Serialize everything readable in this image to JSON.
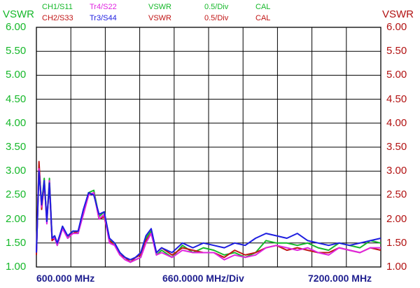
{
  "header": {
    "rows": [
      [
        {
          "text": "CH1/S11",
          "color": "#16b82a"
        },
        {
          "text": "Tr4/S22",
          "color": "#e025e0"
        },
        {
          "text": "VSWR",
          "color": "#16b82a"
        },
        {
          "text": "0.5/Div",
          "color": "#16b82a"
        },
        {
          "text": "CAL",
          "color": "#16b82a"
        }
      ],
      [
        {
          "text": "CH2/S33",
          "color": "#c01515"
        },
        {
          "text": "Tr3/S44",
          "color": "#1e1ee0"
        },
        {
          "text": "VSWR",
          "color": "#c01515"
        },
        {
          "text": "0.5/Div",
          "color": "#c01515"
        },
        {
          "text": "CAL",
          "color": "#c01515"
        }
      ]
    ]
  },
  "colors": {
    "grid": "#000000",
    "left_axis": "#16b82a",
    "right_axis": "#b21212",
    "x_footer": "#1f1f8f"
  },
  "chart_data": {
    "type": "line",
    "ylabel_left": "VSWR",
    "ylabel_right": "VSWR",
    "yticks_left": [
      "6.00",
      "5.50",
      "5.00",
      "4.50",
      "4.00",
      "3.50",
      "3.00",
      "2.50",
      "2.00",
      "1.50",
      "1.00"
    ],
    "yticks_right": [
      "6.00",
      "5.50",
      "5.00",
      "4.50",
      "4.00",
      "3.50",
      "3.00",
      "2.50",
      "2.00",
      "1.50",
      "1.00"
    ],
    "ylim": [
      1.0,
      6.0
    ],
    "xlim": [
      600,
      7200
    ],
    "x_start_label": "600.000 MHz",
    "x_div_label": "660.0000 MHz/Div",
    "x_stop_label": "7200.000 MHz",
    "grid": true,
    "series": [
      {
        "name": "CH1/S11",
        "color": "#16b82a",
        "x": [
          600,
          650,
          700,
          750,
          800,
          850,
          900,
          950,
          1000,
          1100,
          1200,
          1300,
          1400,
          1500,
          1600,
          1700,
          1800,
          1900,
          2000,
          2100,
          2200,
          2300,
          2400,
          2500,
          2600,
          2700,
          2800,
          2900,
          3000,
          3200,
          3400,
          3600,
          3800,
          4000,
          4200,
          4400,
          4600,
          4800,
          5000,
          5200,
          5400,
          5600,
          5800,
          6000,
          6200,
          6400,
          6600,
          6800,
          7000,
          7200
        ],
        "y": [
          1.3,
          3.1,
          2.3,
          2.85,
          1.95,
          2.85,
          1.6,
          1.65,
          1.45,
          1.85,
          1.6,
          1.75,
          1.7,
          2.15,
          2.55,
          2.6,
          2.05,
          2.15,
          1.55,
          1.5,
          1.3,
          1.2,
          1.1,
          1.15,
          1.2,
          1.6,
          1.75,
          1.25,
          1.35,
          1.2,
          1.45,
          1.3,
          1.4,
          1.35,
          1.25,
          1.3,
          1.2,
          1.3,
          1.55,
          1.5,
          1.5,
          1.45,
          1.5,
          1.4,
          1.35,
          1.5,
          1.45,
          1.4,
          1.55,
          1.5
        ]
      },
      {
        "name": "CH2/S33",
        "color": "#c01515",
        "x": [
          600,
          650,
          700,
          750,
          800,
          850,
          900,
          950,
          1000,
          1100,
          1200,
          1300,
          1400,
          1500,
          1600,
          1700,
          1800,
          1900,
          2000,
          2100,
          2200,
          2300,
          2400,
          2500,
          2600,
          2700,
          2800,
          2900,
          3000,
          3200,
          3400,
          3600,
          3800,
          4000,
          4200,
          4400,
          4600,
          4800,
          5000,
          5200,
          5400,
          5600,
          5800,
          6000,
          6200,
          6400,
          6600,
          6800,
          7000,
          7200
        ],
        "y": [
          1.25,
          3.2,
          2.2,
          2.75,
          2.0,
          2.7,
          1.55,
          1.6,
          1.5,
          1.8,
          1.65,
          1.7,
          1.75,
          2.1,
          2.5,
          2.55,
          2.0,
          2.05,
          1.55,
          1.45,
          1.25,
          1.2,
          1.1,
          1.2,
          1.25,
          1.55,
          1.7,
          1.3,
          1.4,
          1.25,
          1.4,
          1.35,
          1.3,
          1.3,
          1.2,
          1.35,
          1.25,
          1.3,
          1.4,
          1.45,
          1.35,
          1.4,
          1.35,
          1.3,
          1.3,
          1.4,
          1.35,
          1.3,
          1.4,
          1.35
        ]
      },
      {
        "name": "Tr4/S22",
        "color": "#e025e0",
        "x": [
          600,
          650,
          700,
          750,
          800,
          850,
          900,
          950,
          1000,
          1100,
          1200,
          1300,
          1400,
          1500,
          1600,
          1700,
          1800,
          1900,
          2000,
          2100,
          2200,
          2300,
          2400,
          2500,
          2600,
          2700,
          2800,
          2900,
          3000,
          3200,
          3400,
          3600,
          3800,
          4000,
          4200,
          4400,
          4600,
          4800,
          5000,
          5200,
          5400,
          5600,
          5800,
          6000,
          6200,
          6400,
          6600,
          6800,
          7000,
          7200
        ],
        "y": [
          1.3,
          3.05,
          2.25,
          2.8,
          1.9,
          2.8,
          1.6,
          1.6,
          1.45,
          1.8,
          1.6,
          1.7,
          1.7,
          2.1,
          2.5,
          2.55,
          2.0,
          2.1,
          1.5,
          1.45,
          1.25,
          1.15,
          1.1,
          1.15,
          1.2,
          1.5,
          1.7,
          1.25,
          1.3,
          1.2,
          1.35,
          1.3,
          1.3,
          1.3,
          1.15,
          1.25,
          1.2,
          1.25,
          1.4,
          1.45,
          1.4,
          1.35,
          1.4,
          1.3,
          1.25,
          1.4,
          1.35,
          1.3,
          1.4,
          1.4
        ]
      },
      {
        "name": "Tr3/S44",
        "color": "#1e1ee0",
        "x": [
          600,
          650,
          700,
          750,
          800,
          850,
          900,
          950,
          1000,
          1100,
          1200,
          1300,
          1400,
          1500,
          1600,
          1700,
          1800,
          1900,
          2000,
          2100,
          2200,
          2300,
          2400,
          2500,
          2600,
          2700,
          2800,
          2900,
          3000,
          3200,
          3400,
          3600,
          3800,
          4000,
          4200,
          4400,
          4600,
          4800,
          5000,
          5200,
          5400,
          5600,
          5800,
          6000,
          6200,
          6400,
          6600,
          6800,
          7000,
          7200
        ],
        "y": [
          1.3,
          3.0,
          2.3,
          2.8,
          1.95,
          2.75,
          1.6,
          1.65,
          1.5,
          1.85,
          1.65,
          1.75,
          1.75,
          2.2,
          2.55,
          2.5,
          2.1,
          2.15,
          1.6,
          1.5,
          1.3,
          1.2,
          1.15,
          1.2,
          1.3,
          1.65,
          1.8,
          1.3,
          1.4,
          1.3,
          1.5,
          1.4,
          1.5,
          1.45,
          1.4,
          1.5,
          1.45,
          1.6,
          1.7,
          1.65,
          1.6,
          1.7,
          1.55,
          1.5,
          1.45,
          1.5,
          1.45,
          1.5,
          1.55,
          1.6
        ]
      }
    ]
  }
}
